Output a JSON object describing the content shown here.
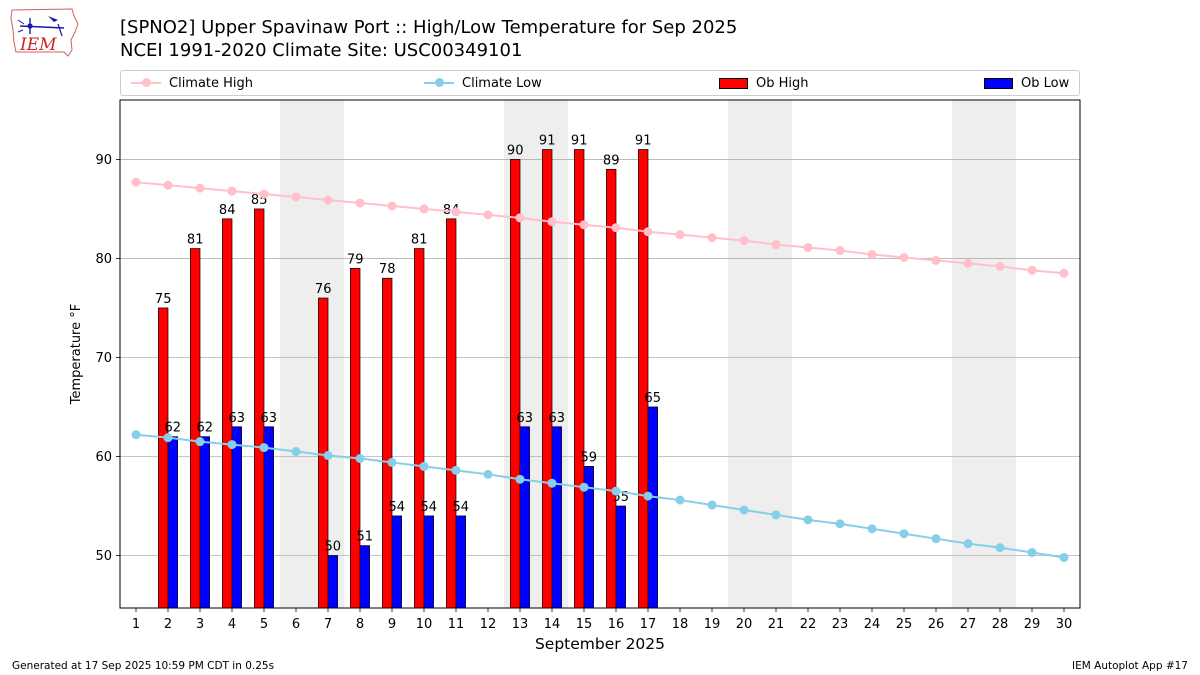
{
  "logo": {
    "text": "IEM"
  },
  "header": {
    "title_line1": "[SPNO2] Upper Spavinaw Port :: High/Low Temperature for Sep 2025",
    "title_line2": "NCEI 1991-2020 Climate Site: USC00349101"
  },
  "legend": {
    "climate_high": "Climate High",
    "climate_low": "Climate Low",
    "ob_high": "Ob High",
    "ob_low": "Ob Low"
  },
  "colors": {
    "climate_high": "#ffc0cb",
    "climate_low": "#87ceeb",
    "ob_high": "#ff0000",
    "ob_low": "#0000ff",
    "weekend_band": "#eeeeee",
    "grid": "#b0b0b0"
  },
  "chart_data": {
    "type": "bar",
    "xlabel": "September 2025",
    "ylabel": "Temperature °F",
    "xlim": [
      0.5,
      30.5
    ],
    "ylim": [
      44.7,
      96.0
    ],
    "yticks": [
      50,
      60,
      70,
      80,
      90
    ],
    "grid": "horizontal",
    "legend_placement": "top",
    "weekend_bands": [
      [
        6,
        7
      ],
      [
        13,
        14
      ],
      [
        20,
        21
      ],
      [
        27,
        28
      ]
    ],
    "days": [
      1,
      2,
      3,
      4,
      5,
      6,
      7,
      8,
      9,
      10,
      11,
      12,
      13,
      14,
      15,
      16,
      17,
      18,
      19,
      20,
      21,
      22,
      23,
      24,
      25,
      26,
      27,
      28,
      29,
      30
    ],
    "series": [
      {
        "name": "Climate High",
        "kind": "line",
        "values": [
          87.7,
          87.4,
          87.1,
          86.8,
          86.5,
          86.2,
          85.9,
          85.6,
          85.3,
          85.0,
          84.7,
          84.4,
          84.1,
          83.7,
          83.4,
          83.1,
          82.7,
          82.4,
          82.1,
          81.8,
          81.4,
          81.1,
          80.8,
          80.4,
          80.1,
          79.8,
          79.5,
          79.2,
          78.8,
          78.5
        ]
      },
      {
        "name": "Climate Low",
        "kind": "line",
        "values": [
          62.2,
          61.9,
          61.5,
          61.2,
          60.9,
          60.5,
          60.1,
          59.8,
          59.4,
          59.0,
          58.6,
          58.2,
          57.7,
          57.3,
          56.9,
          56.5,
          56.0,
          55.6,
          55.1,
          54.6,
          54.1,
          53.6,
          53.2,
          52.7,
          52.2,
          51.7,
          51.2,
          50.8,
          50.3,
          49.8
        ]
      },
      {
        "name": "Ob High",
        "kind": "bar",
        "values": [
          null,
          75,
          81,
          84,
          85,
          null,
          76,
          79,
          78,
          81,
          84,
          null,
          90,
          91,
          91,
          89,
          91,
          null,
          null,
          null,
          null,
          null,
          null,
          null,
          null,
          null,
          null,
          null,
          null,
          null
        ]
      },
      {
        "name": "Ob Low",
        "kind": "bar",
        "values": [
          null,
          62,
          62,
          63,
          63,
          null,
          50,
          51,
          54,
          54,
          54,
          null,
          63,
          63,
          59,
          55,
          65,
          null,
          null,
          null,
          null,
          null,
          null,
          null,
          null,
          null,
          null,
          null,
          null,
          null
        ]
      }
    ]
  },
  "footer": {
    "generated": "Generated at 17 Sep 2025 10:59 PM CDT in 0.25s",
    "app": "IEM Autoplot App #17"
  }
}
